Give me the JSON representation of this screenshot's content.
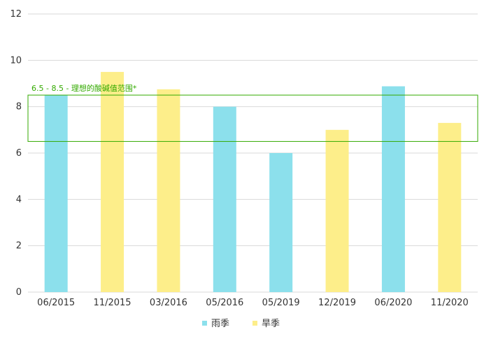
{
  "chart_data": {
    "type": "bar",
    "categories": [
      "06/2015",
      "11/2015",
      "03/2016",
      "05/2016",
      "05/2019",
      "12/2019",
      "06/2020",
      "11/2020"
    ],
    "values": [
      8.5,
      9.5,
      8.75,
      8.0,
      6.0,
      7.0,
      8.88,
      7.3
    ],
    "season": [
      "rainy",
      "dry",
      "dry",
      "rainy",
      "rainy",
      "dry",
      "rainy",
      "dry"
    ],
    "ylim": [
      0,
      12
    ],
    "yticks": [
      0,
      2,
      4,
      6,
      8,
      10,
      12
    ],
    "grid": true,
    "legend": {
      "placement": "bottom",
      "items": [
        {
          "key": "rainy",
          "label": "雨季",
          "color": "#8ce0ec"
        },
        {
          "key": "dry",
          "label": "旱季",
          "color": "#fdee8a"
        }
      ]
    },
    "reference_band": {
      "from": 6.5,
      "to": 8.5,
      "label": "6.5 - 8.5 - 理想的酸碱值范围*",
      "color": "#33aa00"
    }
  }
}
